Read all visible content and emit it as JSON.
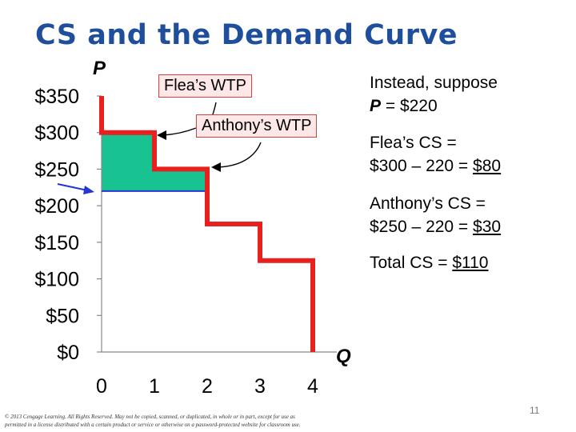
{
  "slide": {
    "title": "CS and the Demand Curve",
    "page_number": "11",
    "copyright_line1": "© 2013 Cengage Learning. All Rights Reserved. May not be copied, scanned, or duplicated, in whole or in part, except for use as",
    "copyright_line2": "permitted in a license distributed with a certain product or service or otherwise on a password-protected website for classroom use."
  },
  "chart_data": {
    "type": "line",
    "xlabel": "Q",
    "ylabel": "P",
    "x_ticks": [
      "0",
      "1",
      "2",
      "3",
      "4"
    ],
    "y_ticks": [
      "$0",
      "$50",
      "$100",
      "$150",
      "$200",
      "$250",
      "$300",
      "$350"
    ],
    "xlim": [
      0,
      4
    ],
    "ylim": [
      0,
      350
    ],
    "grid": false,
    "series": [
      {
        "points": [
          [
            0,
            350
          ],
          [
            0,
            300
          ],
          [
            1,
            300
          ],
          [
            1,
            250
          ],
          [
            2,
            250
          ],
          [
            2,
            175
          ],
          [
            3,
            175
          ],
          [
            3,
            125
          ],
          [
            4,
            125
          ],
          [
            4,
            0
          ]
        ],
        "color": "#e8211f"
      }
    ],
    "price_line": {
      "value": 220,
      "color": "#2436d6"
    },
    "consumer_surplus_color": "#19c391",
    "consumer_surplus_steps": [
      {
        "x_from": 0,
        "x_to": 1,
        "top": 300
      },
      {
        "x_from": 1,
        "x_to": 2,
        "top": 250
      }
    ],
    "annotations": {
      "flea_wtp": "Flea’s WTP",
      "anthony_wtp": "Anthony’s WTP"
    }
  },
  "notes": {
    "suppose_line1": "Instead, suppose",
    "suppose_p": "P",
    "suppose_rest": " = $220",
    "flea_cs_line1": "Flea’s CS =",
    "flea_cs_calc": "$300 – 220 = ",
    "flea_cs_value": "$80",
    "anthony_cs_line1": "Anthony’s CS =",
    "anthony_cs_calc": "$250 – 220 = ",
    "anthony_cs_value": "$30",
    "total_cs_label": "Total CS = ",
    "total_cs_value": "$110"
  },
  "colors": {
    "title": "#1f4e9c",
    "box_border": "#d94040",
    "box_fill": "#fde7e7"
  }
}
